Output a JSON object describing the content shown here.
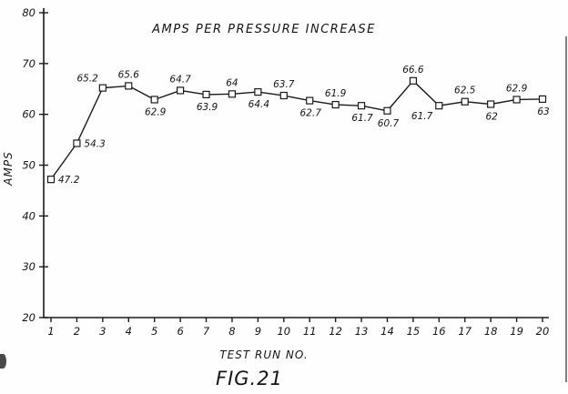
{
  "figure": {
    "caption": "FIG.21"
  },
  "chart_data": {
    "type": "line",
    "title": "AMPS PER PRESSURE INCREASE",
    "xlabel": "TEST RUN NO.",
    "ylabel": "AMPS",
    "x": [
      1,
      2,
      3,
      4,
      5,
      6,
      7,
      8,
      9,
      10,
      11,
      12,
      13,
      14,
      15,
      16,
      17,
      18,
      19,
      20
    ],
    "values": [
      47.2,
      54.3,
      65.2,
      65.6,
      62.9,
      64.7,
      63.9,
      64,
      64.4,
      63.7,
      62.7,
      61.9,
      61.7,
      60.7,
      66.6,
      61.7,
      62.5,
      62,
      62.9,
      63
    ],
    "point_labels": [
      "47.2",
      "54.3",
      "65.2",
      "65.6",
      "62.9",
      "64.7",
      "63.9",
      "64",
      "64.4",
      "63.7",
      "62.7",
      "61.9",
      "61.7",
      "60.7",
      "66.6",
      "61.7",
      "62.5",
      "62",
      "62.9",
      "63"
    ],
    "label_positions": [
      "right",
      "right",
      "above-left",
      "above",
      "below",
      "above",
      "below",
      "above",
      "below",
      "above",
      "below",
      "above",
      "below",
      "below",
      "above",
      "below-left",
      "above",
      "below",
      "above",
      "below"
    ],
    "xticks": [
      1,
      2,
      3,
      4,
      5,
      6,
      7,
      8,
      9,
      10,
      11,
      12,
      13,
      14,
      15,
      16,
      17,
      18,
      19,
      20
    ],
    "yticks": [
      20,
      30,
      40,
      50,
      60,
      70,
      80
    ],
    "ylim": [
      20,
      80
    ],
    "xlim": [
      1,
      20
    ],
    "grid": false,
    "legend": null,
    "marker": "open-square",
    "colors": {
      "line": "#1a1a1a",
      "marker_fill": "#ffffff",
      "background": "#fefefe"
    }
  }
}
